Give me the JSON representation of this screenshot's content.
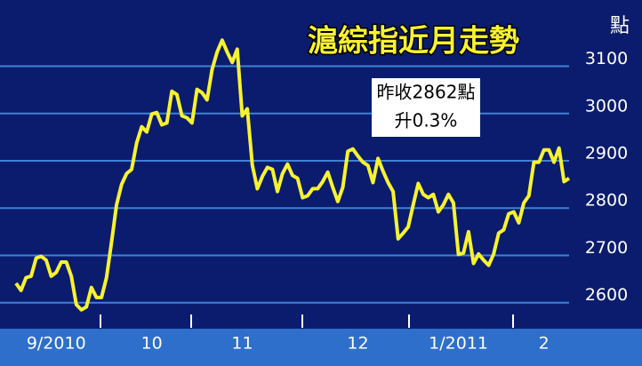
{
  "chart_data": {
    "type": "line",
    "title": "滬綜指近月走勢",
    "y_label": "點",
    "annotation": [
      "昨收2862點",
      "升0.3%"
    ],
    "categories": [
      null,
      null,
      null,
      null,
      null,
      null,
      null,
      null,
      "9/2010",
      null,
      null,
      null,
      null,
      null,
      null,
      null,
      null,
      null,
      null,
      null,
      null,
      null,
      null,
      null,
      null,
      null,
      null,
      "10",
      null,
      null,
      null,
      null,
      null,
      null,
      null,
      null,
      null,
      null,
      null,
      null,
      null,
      null,
      null,
      null,
      null,
      "11",
      null,
      null,
      null,
      null,
      null,
      null,
      null,
      null,
      null,
      null,
      null,
      null,
      null,
      null,
      null,
      null,
      null,
      null,
      null,
      null,
      null,
      null,
      "12",
      null,
      null,
      null,
      null,
      null,
      null,
      null,
      null,
      null,
      null,
      null,
      null,
      null,
      null,
      null,
      null,
      null,
      null,
      null,
      "1/2011",
      null,
      null,
      null,
      null,
      null,
      null,
      null,
      null,
      null,
      null,
      null,
      null,
      null,
      null,
      null,
      null,
      "2",
      null,
      null,
      null,
      null,
      null
    ],
    "series": [
      {
        "color": "#f7f230",
        "values": [
          2641,
          2626,
          2653,
          2656,
          2694,
          2698,
          2690,
          2656,
          2664,
          2686,
          2686,
          2656,
          2596,
          2585,
          2591,
          2632,
          2611,
          2611,
          2653,
          2728,
          2807,
          2850,
          2873,
          2882,
          2938,
          2972,
          2961,
          2999,
          3002,
          2976,
          2980,
          3047,
          3040,
          2995,
          2991,
          2980,
          3051,
          3044,
          3029,
          3093,
          3130,
          3155,
          3130,
          3108,
          3136,
          2995,
          3010,
          2891,
          2841,
          2867,
          2886,
          2882,
          2835,
          2873,
          2893,
          2869,
          2863,
          2822,
          2826,
          2841,
          2841,
          2856,
          2876,
          2844,
          2814,
          2844,
          2920,
          2925,
          2910,
          2897,
          2890,
          2854,
          2905,
          2878,
          2854,
          2835,
          2735,
          2747,
          2760,
          2807,
          2852,
          2829,
          2822,
          2829,
          2792,
          2807,
          2829,
          2811,
          2702,
          2705,
          2750,
          2683,
          2703,
          2690,
          2679,
          2703,
          2747,
          2754,
          2788,
          2792,
          2769,
          2811,
          2826,
          2897,
          2897,
          2923,
          2923,
          2897,
          2927,
          2856,
          2863
        ]
      }
    ],
    "ylim": [
      2545,
      3240
    ],
    "yticks": [
      2600,
      2700,
      2800,
      2900,
      3000,
      3100
    ],
    "grid": true
  }
}
